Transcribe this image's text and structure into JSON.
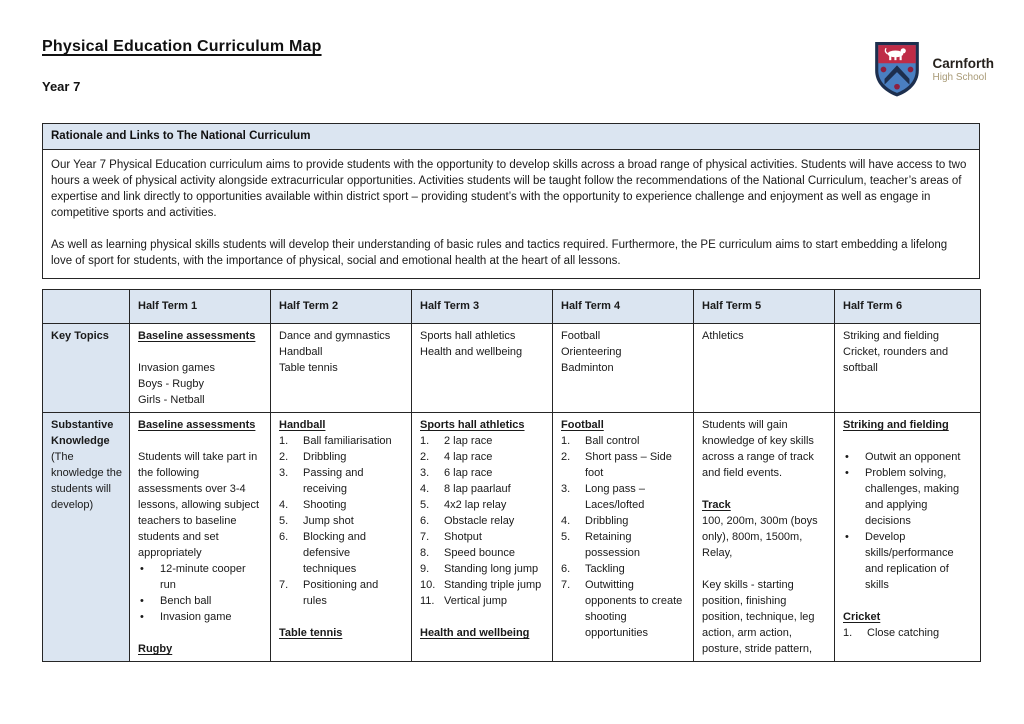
{
  "page": {
    "title": "Physical Education Curriculum Map",
    "subtitle": "Year 7"
  },
  "logo": {
    "school_name": "Carnforth",
    "school_type": "High School"
  },
  "colors": {
    "table_header_bg": "#dbe5f1",
    "crest_red": "#bf2c47",
    "crest_blue": "#4a7fc1",
    "crest_navy": "#1d2f4e",
    "crest_dot": "#8e1f3f"
  },
  "rationale": {
    "header": "Rationale and Links to The National Curriculum",
    "paragraphs": [
      "Our Year 7 Physical Education curriculum aims to provide students with the opportunity to develop skills across a broad range of physical activities. Students will have access to two hours a week of physical activity alongside extracurricular opportunities. Activities students will be taught follow the recommendations of the National Curriculum, teacher’s areas of expertise and link directly to opportunities available within district sport – providing student’s with the opportunity to experience challenge and enjoyment as well as engage in competitive sports and activities.",
      "As well as learning physical skills students will develop their understanding of basic rules and tactics required. Furthermore, the PE curriculum aims to start embedding a lifelong love of sport for students, with the importance of physical, social and emotional health at the heart of all lessons."
    ]
  },
  "curriculum_table": {
    "column_headers": [
      "",
      "Half Term 1",
      "Half Term 2",
      "Half Term 3",
      "Half Term 4",
      "Half Term 5",
      "Half Term 6"
    ],
    "rows": [
      {
        "id": "key-topics",
        "label": "Key Topics",
        "label_note": "",
        "cells": [
          [
            {
              "type": "heading",
              "text": "Baseline assessments"
            },
            {
              "type": "spacer"
            },
            {
              "type": "text",
              "text": "Invasion games"
            },
            {
              "type": "text",
              "text": "Boys - Rugby"
            },
            {
              "type": "text",
              "text": "Girls - Netball"
            }
          ],
          [
            {
              "type": "text",
              "text": "Dance and gymnastics"
            },
            {
              "type": "text",
              "text": "Handball"
            },
            {
              "type": "text",
              "text": "Table tennis"
            }
          ],
          [
            {
              "type": "text",
              "text": "Sports hall athletics"
            },
            {
              "type": "text",
              "text": "Health and wellbeing"
            }
          ],
          [
            {
              "type": "text",
              "text": "Football"
            },
            {
              "type": "text",
              "text": "Orienteering"
            },
            {
              "type": "text",
              "text": "Badminton"
            }
          ],
          [
            {
              "type": "text",
              "text": "Athletics"
            }
          ],
          [
            {
              "type": "text",
              "text": "Striking and fielding"
            },
            {
              "type": "text",
              "text": "Cricket, rounders and softball"
            }
          ]
        ]
      },
      {
        "id": "substantive",
        "label": "Substantive Knowledge",
        "label_note": "(The knowledge the students will develop)",
        "cells": [
          [
            {
              "type": "heading",
              "text": "Baseline assessments"
            },
            {
              "type": "spacer"
            },
            {
              "type": "text",
              "text": "Students will take part in the following assessments over 3-4 lessons, allowing subject teachers to baseline students and set appropriately"
            },
            {
              "type": "bullets",
              "items": [
                "12-minute cooper run",
                "Bench ball",
                "Invasion game"
              ]
            },
            {
              "type": "spacer"
            },
            {
              "type": "heading",
              "text": "Rugby"
            }
          ],
          [
            {
              "type": "heading",
              "text": "Handball"
            },
            {
              "type": "numbered",
              "items": [
                "Ball familiarisation",
                "Dribbling",
                "Passing and receiving",
                "Shooting",
                "Jump shot",
                "Blocking and defensive techniques",
                "Positioning and rules"
              ]
            },
            {
              "type": "spacer"
            },
            {
              "type": "heading",
              "text": "Table tennis"
            }
          ],
          [
            {
              "type": "heading",
              "text": "Sports hall athletics"
            },
            {
              "type": "numbered",
              "items": [
                "2 lap race",
                "4 lap race",
                "6 lap race",
                "8 lap paarlauf",
                "4x2 lap relay",
                "Obstacle relay",
                "Shotput",
                "Speed bounce",
                "Standing long jump",
                "Standing triple jump",
                "Vertical jump"
              ]
            },
            {
              "type": "spacer"
            },
            {
              "type": "heading",
              "text": "Health and wellbeing"
            }
          ],
          [
            {
              "type": "heading",
              "text": "Football"
            },
            {
              "type": "numbered",
              "items": [
                "Ball control",
                "Short pass – Side foot",
                "Long pass – Laces/lofted",
                "Dribbling",
                "Retaining possession",
                "Tackling",
                "Outwitting opponents to create shooting opportunities"
              ]
            }
          ],
          [
            {
              "type": "text",
              "text": "Students will gain knowledge of key skills across a range of track and field events."
            },
            {
              "type": "spacer"
            },
            {
              "type": "heading",
              "text": "Track"
            },
            {
              "type": "text",
              "text": "100, 200m, 300m (boys only), 800m, 1500m, Relay,"
            },
            {
              "type": "spacer"
            },
            {
              "type": "text",
              "text": "Key skills - starting position, finishing position, technique, leg action, arm action, posture, stride pattern,"
            }
          ],
          [
            {
              "type": "heading",
              "text": "Striking and fielding"
            },
            {
              "type": "spacer"
            },
            {
              "type": "bullets",
              "items": [
                "Outwit an opponent",
                "Problem solving, challenges, making and applying decisions",
                "Develop skills/performance and replication of skills"
              ]
            },
            {
              "type": "spacer"
            },
            {
              "type": "heading",
              "text": "Cricket"
            },
            {
              "type": "numbered",
              "items": [
                "Close catching"
              ]
            }
          ]
        ]
      }
    ]
  }
}
